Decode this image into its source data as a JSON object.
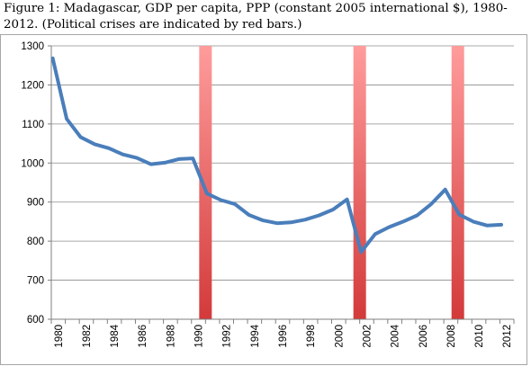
{
  "caption": {
    "line1": "Figure 1: Madagascar, GDP per capita, PPP (constant 2005 international $), 1980-",
    "line2": "2012.  (Political crises are indicated by red bars.)"
  },
  "chart_data": {
    "type": "line",
    "title": "Figure 1: Madagascar, GDP per capita, PPP (constant 2005 international $), 1980-2012.  (Political crises are indicated by red bars.)",
    "xlabel": "",
    "ylabel": "",
    "ylim": [
      600,
      1300
    ],
    "yticks": [
      600,
      700,
      800,
      900,
      1000,
      1100,
      1200,
      1300
    ],
    "xticks": [
      "1980",
      "1982",
      "1984",
      "1986",
      "1988",
      "1990",
      "1992",
      "1994",
      "1996",
      "1998",
      "2000",
      "2002",
      "2004",
      "2006",
      "2008",
      "2010",
      "2012"
    ],
    "grid": "horizontal",
    "series": [
      {
        "color": "#4a7ebb",
        "x": [
          1980,
          1981,
          1982,
          1983,
          1984,
          1985,
          1986,
          1987,
          1988,
          1989,
          1990,
          1991,
          1992,
          1993,
          1994,
          1995,
          1996,
          1997,
          1998,
          1999,
          2000,
          2001,
          2002,
          2003,
          2004,
          2005,
          2006,
          2007,
          2008,
          2009,
          2010,
          2011,
          2012
        ],
        "values": [
          1268,
          1113,
          1066,
          1048,
          1038,
          1022,
          1013,
          997,
          1001,
          1010,
          1012,
          922,
          905,
          895,
          867,
          853,
          846,
          848,
          855,
          866,
          881,
          907,
          772,
          818,
          836,
          850,
          866,
          895,
          932,
          868,
          850,
          840,
          842
        ]
      }
    ],
    "crisis_bars": {
      "color": "#e05a5a",
      "years": [
        1991,
        2002,
        2009
      ]
    }
  }
}
